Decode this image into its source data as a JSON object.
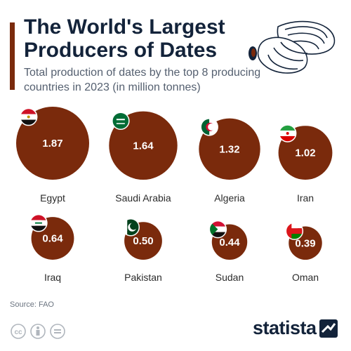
{
  "title": "The World's Largest Producers of Dates",
  "subtitle": "Total production of dates by the top 8 producing countries in 2023 (in million tonnes)",
  "source": "Source: FAO",
  "brand": "statista",
  "colors": {
    "bubble": "#7a2a0c",
    "accent": "#7a2a0c",
    "title": "#13233a",
    "text": "#2b2b2b"
  },
  "chart_data": {
    "type": "bubble",
    "unit": "million tonnes",
    "categories": [
      "Egypt",
      "Saudi Arabia",
      "Algeria",
      "Iran",
      "Iraq",
      "Pakistan",
      "Sudan",
      "Oman"
    ],
    "values": [
      1.87,
      1.64,
      1.32,
      1.02,
      0.64,
      0.5,
      0.44,
      0.39
    ],
    "labels": [
      "1.87",
      "1.64",
      "1.32",
      "1.02",
      "0.64",
      "0.50",
      "0.44",
      "0.39"
    ],
    "flags": [
      "egypt-flag",
      "saudi-arabia-flag",
      "algeria-flag",
      "iran-flag",
      "iraq-flag",
      "pakistan-flag",
      "sudan-flag",
      "oman-flag"
    ]
  }
}
